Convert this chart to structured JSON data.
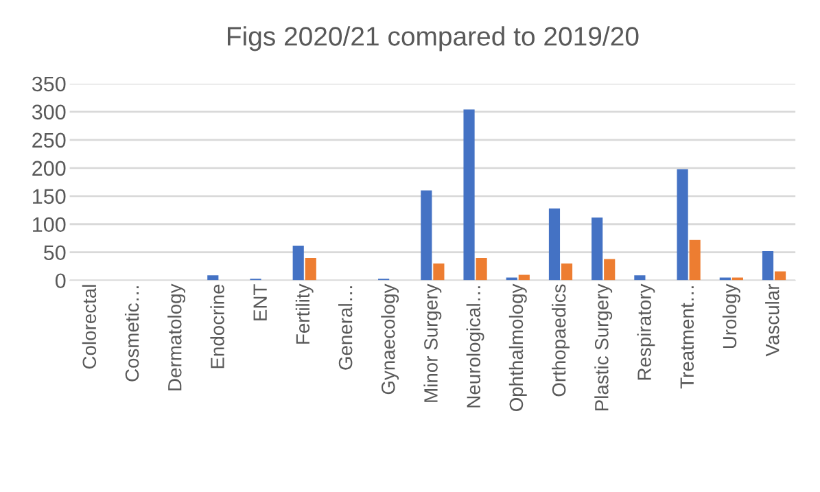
{
  "chart_data": {
    "type": "bar",
    "title": "Figs 2020/21 compared to 2019/20",
    "categories": [
      "Colorectal",
      "Cosmetic…",
      "Dermatology",
      "Endocrine",
      "ENT",
      "Fertility",
      "General…",
      "Gynaecology",
      "Minor Surgery",
      "Neurological…",
      "Ophthalmology",
      "Orthopaedics",
      "Plastic Surgery",
      "Respiratory",
      "Treatment…",
      "Urology",
      "Vascular"
    ],
    "series": [
      {
        "color": "#4472c4",
        "values": [
          0,
          0,
          0,
          9,
          3,
          62,
          0,
          3,
          160,
          304,
          5,
          128,
          112,
          9,
          198,
          5,
          52
        ]
      },
      {
        "color": "#ed7d31",
        "values": [
          0,
          0,
          0,
          0,
          0,
          40,
          0,
          0,
          30,
          40,
          10,
          30,
          38,
          0,
          72,
          5,
          16
        ]
      }
    ],
    "ylim": [
      0,
      350
    ],
    "yticks": [
      0,
      50,
      100,
      150,
      200,
      250,
      300,
      350
    ],
    "grid": "y"
  }
}
